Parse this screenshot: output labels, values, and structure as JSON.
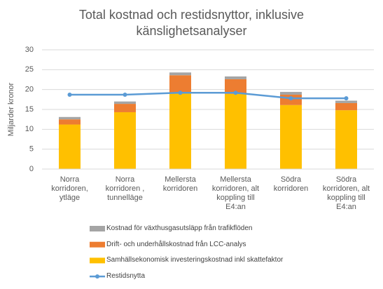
{
  "chart_data": {
    "type": "bar",
    "stacked": true,
    "title": "Total kostnad och restidsnyttor, inklusive känslighetsanalyser",
    "y_label": "Miljarder kronor",
    "categories": [
      "Norra korridoren, ytläge",
      "Norra korridoren , tunnelläge",
      "Mellersta korridoren",
      "Mellersta korridoren, alt koppling till E4:an",
      "Södra korridoren",
      "Södra korridoren, alt koppling till E4:an"
    ],
    "series": [
      {
        "name": "Samhällsekonomisk investeringskostnad inkl skattefaktor",
        "type": "bar",
        "color": "#ffc000",
        "values": [
          11.2,
          14.3,
          19.0,
          18.9,
          16.1,
          14.8
        ]
      },
      {
        "name": "Drift- och underhållskostnad från LCC-analys",
        "type": "bar",
        "color": "#ed7d31",
        "values": [
          1.3,
          2.1,
          4.6,
          3.7,
          2.6,
          1.8
        ]
      },
      {
        "name": "Kostnad för växthusgasutsläpp från trafikflöden",
        "type": "bar",
        "color": "#a5a5a5",
        "values": [
          0.6,
          0.6,
          0.7,
          0.7,
          0.7,
          0.6
        ]
      },
      {
        "name": "Restidsnytta",
        "type": "line",
        "color": "#5b9bd5",
        "values": [
          18.7,
          18.7,
          19.2,
          19.2,
          17.8,
          17.8
        ]
      }
    ],
    "ylim": [
      0,
      30
    ],
    "yticks": [
      0,
      5,
      10,
      15,
      20,
      25,
      30
    ],
    "grid": true,
    "legend": "bottom"
  }
}
